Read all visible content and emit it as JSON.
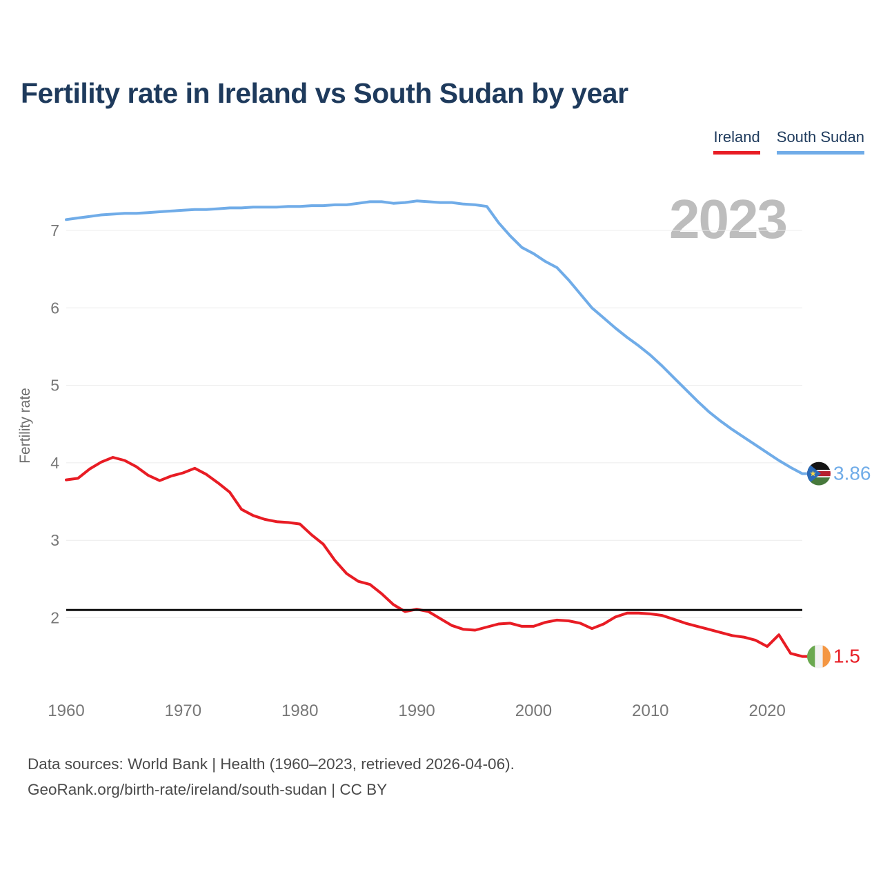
{
  "watermark": "2023",
  "footer": {
    "line1": "Data sources: World Bank | Health (1960–2023, retrieved 2026-04-06).",
    "line2": "GeoRank.org/birth-rate/ireland/south-sudan | CC BY"
  },
  "chart_data": {
    "type": "line",
    "title": "Fertility rate in Ireland vs South Sudan by year",
    "xlabel": "",
    "ylabel": "Fertility rate",
    "xlim": [
      1960,
      2023
    ],
    "ylim": [
      1.3,
      7.6
    ],
    "x_ticks": [
      1960,
      1970,
      1980,
      1990,
      2000,
      2010,
      2020
    ],
    "y_ticks": [
      2,
      3,
      4,
      5,
      6,
      7
    ],
    "grid": "horizontal",
    "legend_position": "top-right",
    "reference_line": {
      "value": 2.1,
      "color": "#0d0d0d"
    },
    "years": [
      1960,
      1961,
      1962,
      1963,
      1964,
      1965,
      1966,
      1967,
      1968,
      1969,
      1970,
      1971,
      1972,
      1973,
      1974,
      1975,
      1976,
      1977,
      1978,
      1979,
      1980,
      1981,
      1982,
      1983,
      1984,
      1985,
      1986,
      1987,
      1988,
      1989,
      1990,
      1991,
      1992,
      1993,
      1994,
      1995,
      1996,
      1997,
      1998,
      1999,
      2000,
      2001,
      2002,
      2003,
      2004,
      2005,
      2006,
      2007,
      2008,
      2009,
      2010,
      2011,
      2012,
      2013,
      2014,
      2015,
      2016,
      2017,
      2018,
      2019,
      2020,
      2021,
      2022,
      2023
    ],
    "series": [
      {
        "name": "Ireland",
        "color": "#e81c24",
        "flag": "ireland",
        "end_label": "1.5",
        "values": [
          3.78,
          3.8,
          3.92,
          4.01,
          4.07,
          4.03,
          3.95,
          3.84,
          3.77,
          3.83,
          3.87,
          3.93,
          3.85,
          3.74,
          3.62,
          3.4,
          3.32,
          3.27,
          3.24,
          3.23,
          3.21,
          3.07,
          2.95,
          2.74,
          2.57,
          2.47,
          2.43,
          2.31,
          2.17,
          2.08,
          2.11,
          2.08,
          1.99,
          1.9,
          1.85,
          1.84,
          1.88,
          1.92,
          1.93,
          1.89,
          1.89,
          1.94,
          1.97,
          1.96,
          1.93,
          1.86,
          1.92,
          2.01,
          2.06,
          2.06,
          2.05,
          2.03,
          1.98,
          1.93,
          1.89,
          1.85,
          1.81,
          1.77,
          1.75,
          1.71,
          1.63,
          1.78,
          1.54,
          1.5
        ]
      },
      {
        "name": "South Sudan",
        "color": "#70ace8",
        "flag": "south-sudan",
        "end_label": "3.86",
        "values": [
          7.14,
          7.16,
          7.18,
          7.2,
          7.21,
          7.22,
          7.22,
          7.23,
          7.24,
          7.25,
          7.26,
          7.27,
          7.27,
          7.28,
          7.29,
          7.29,
          7.3,
          7.3,
          7.3,
          7.31,
          7.31,
          7.32,
          7.32,
          7.33,
          7.33,
          7.35,
          7.37,
          7.37,
          7.35,
          7.36,
          7.38,
          7.37,
          7.36,
          7.36,
          7.34,
          7.33,
          7.31,
          7.1,
          6.93,
          6.78,
          6.7,
          6.6,
          6.52,
          6.36,
          6.18,
          6.0,
          5.87,
          5.74,
          5.62,
          5.51,
          5.39,
          5.25,
          5.1,
          4.95,
          4.8,
          4.66,
          4.54,
          4.43,
          4.33,
          4.23,
          4.13,
          4.03,
          3.94,
          3.86
        ]
      }
    ],
    "flag_colors": {
      "ireland": {
        "green": "#6aa84f",
        "white": "#f1f1f1",
        "orange": "#f49642"
      },
      "south_sudan": {
        "black": "#141414",
        "red": "#b5202f",
        "green": "#47793c",
        "white": "#f4f4f4",
        "blue": "#2b6bb8",
        "star": "#f8d84a"
      }
    },
    "axis_text_color": "#777777",
    "grid_color": "#ececec"
  }
}
